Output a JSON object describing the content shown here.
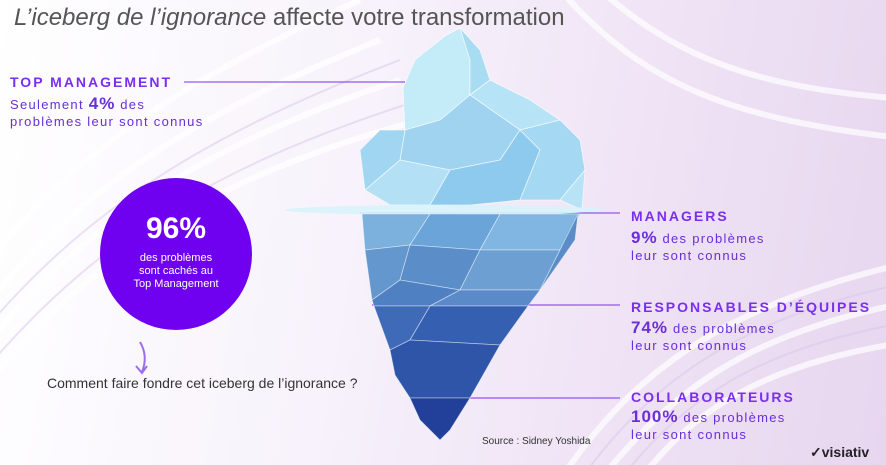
{
  "title": {
    "italic": "L’iceberg de l’ignorance",
    "rest": " affecte votre transformation"
  },
  "top_management": {
    "heading": "TOP MANAGEMENT",
    "line1_pre": "Seulement ",
    "pct": "4%",
    "line1_post": " des",
    "line2": "problèmes leur sont connus"
  },
  "circle": {
    "big": "96%",
    "line1": "des problèmes",
    "line2": "sont cachés au",
    "line3": "Top Management"
  },
  "managers": {
    "heading": "MANAGERS",
    "pct": "9%",
    "rest": " des problèmes",
    "line2": "leur sont connus"
  },
  "team_leads": {
    "heading": "RESPONSABLES D’ÉQUIPES",
    "pct": "74%",
    "rest": " des problèmes",
    "line2": "leur sont connus"
  },
  "employees": {
    "heading": "COLLABORATEURS",
    "pct": "100%",
    "rest": " des problèmes",
    "line2": "leur sont connus"
  },
  "question": "Comment faire fondre cet iceberg de l’ignorance ?",
  "source": "Source : Sidney Yoshida",
  "logo": {
    "text": "visiativ",
    "icon": "checkmark-logo-icon"
  },
  "colors": {
    "accent": "#7a2ff0",
    "circle": "#6f00f0",
    "ice_light": "#b9e4f6",
    "ice_mid": "#6fa4da",
    "ice_dark": "#1f3f9a"
  }
}
